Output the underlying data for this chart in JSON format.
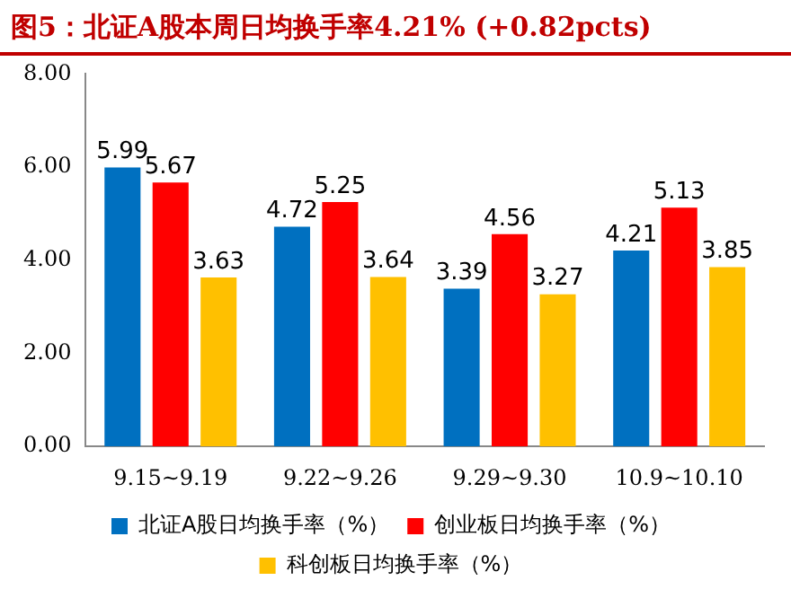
{
  "chart_data": {
    "type": "bar",
    "title": "图5：北证A股本周日均换手率4.21% (+0.82pcts)",
    "categories": [
      "9.15~9.19",
      "9.22~9.26",
      "9.29~9.30",
      "10.9~10.10"
    ],
    "series": [
      {
        "name": "北证A股日均换手率（%）",
        "color": "#0070c0",
        "values": [
          5.99,
          4.72,
          3.39,
          4.21
        ]
      },
      {
        "name": "创业板日均换手率（%）",
        "color": "#ff0000",
        "values": [
          5.67,
          5.25,
          4.56,
          5.13
        ]
      },
      {
        "name": "科创板日均换手率（%）",
        "color": "#ffc000",
        "values": [
          3.63,
          3.64,
          3.27,
          3.85
        ]
      }
    ],
    "ylim": [
      0,
      8
    ],
    "yticks": [
      {
        "value": 0,
        "label": "0.00"
      },
      {
        "value": 2,
        "label": "2.00"
      },
      {
        "value": 4,
        "label": "4.00"
      },
      {
        "value": 6,
        "label": "6.00"
      },
      {
        "value": 8,
        "label": "8.00"
      }
    ],
    "grid": false,
    "legend": "bottom",
    "data_labels": true
  }
}
